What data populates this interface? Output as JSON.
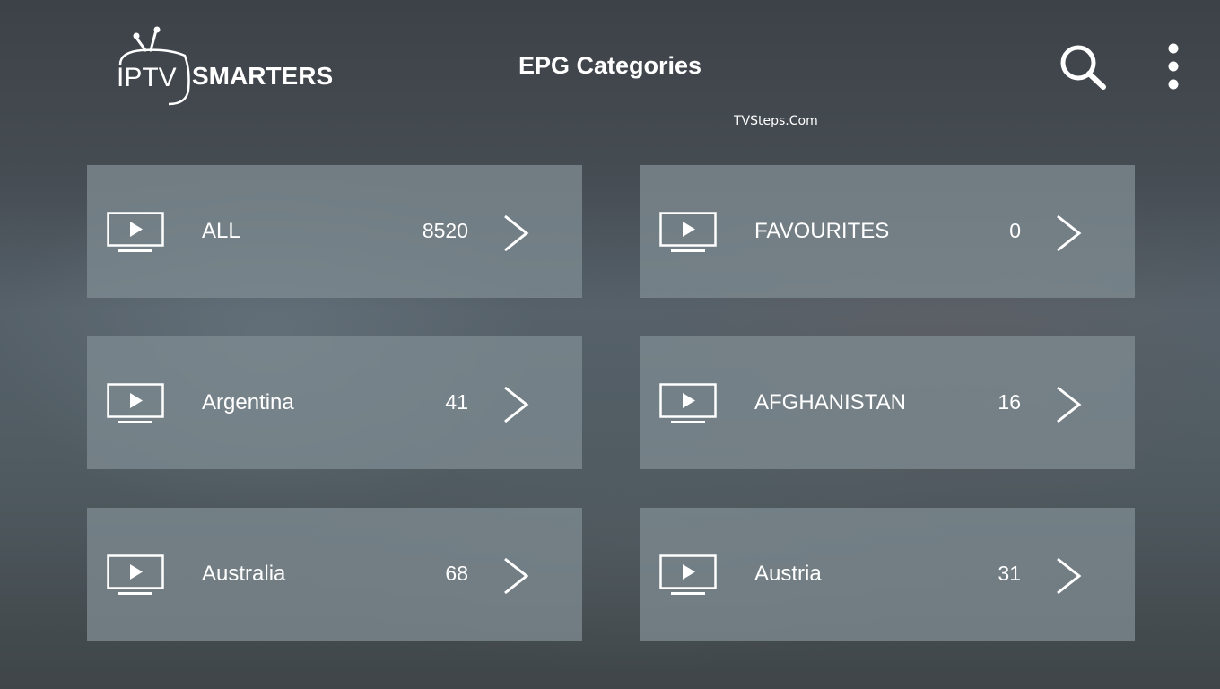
{
  "header": {
    "logo_text": "IPTV SMARTERS",
    "title": "EPG Categories",
    "watermark": "TVSteps.Com",
    "search_icon": "search-icon",
    "menu_icon": "more-vert-icon"
  },
  "categories": [
    {
      "label": "ALL",
      "count": "8520"
    },
    {
      "label": "FAVOURITES",
      "count": "0"
    },
    {
      "label": "Argentina",
      "count": "41"
    },
    {
      "label": "AFGHANISTAN",
      "count": "16"
    },
    {
      "label": "Australia",
      "count": "68"
    },
    {
      "label": "Austria",
      "count": "31"
    }
  ]
}
